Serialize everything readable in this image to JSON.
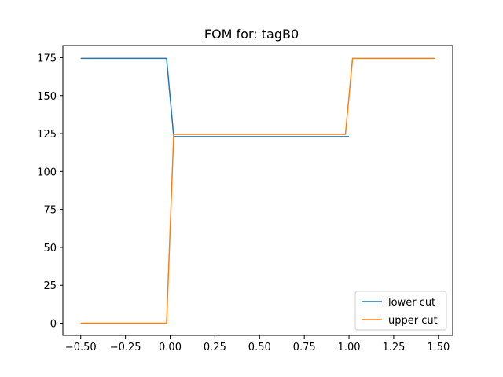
{
  "chart_data": {
    "type": "line",
    "title": "FOM for: tagB0",
    "xlabel": "",
    "ylabel": "",
    "xlim": [
      -0.6,
      1.58
    ],
    "ylim": [
      -8,
      183
    ],
    "x_ticks": [
      -0.5,
      -0.25,
      0.0,
      0.25,
      0.5,
      0.75,
      1.0,
      1.25,
      1.5
    ],
    "x_tick_labels": [
      "−0.50",
      "−0.25",
      "0.00",
      "0.25",
      "0.50",
      "0.75",
      "1.00",
      "1.25",
      "1.50"
    ],
    "y_ticks": [
      0,
      25,
      50,
      75,
      100,
      125,
      150,
      175
    ],
    "y_tick_labels": [
      "0",
      "25",
      "50",
      "75",
      "100",
      "125",
      "150",
      "175"
    ],
    "grid": false,
    "legend_position": "lower-right",
    "series": [
      {
        "name": "lower cut",
        "color": "#1f77b4",
        "x": [
          -0.5,
          -0.02,
          0.02,
          1.0
        ],
        "y": [
          174.5,
          174.5,
          123.0,
          123.0
        ]
      },
      {
        "name": "upper cut",
        "color": "#ff7f0e",
        "x": [
          -0.5,
          -0.02,
          0.02,
          0.98,
          1.02,
          1.48
        ],
        "y": [
          0.0,
          0.0,
          124.5,
          124.5,
          174.5,
          174.5
        ]
      }
    ]
  }
}
